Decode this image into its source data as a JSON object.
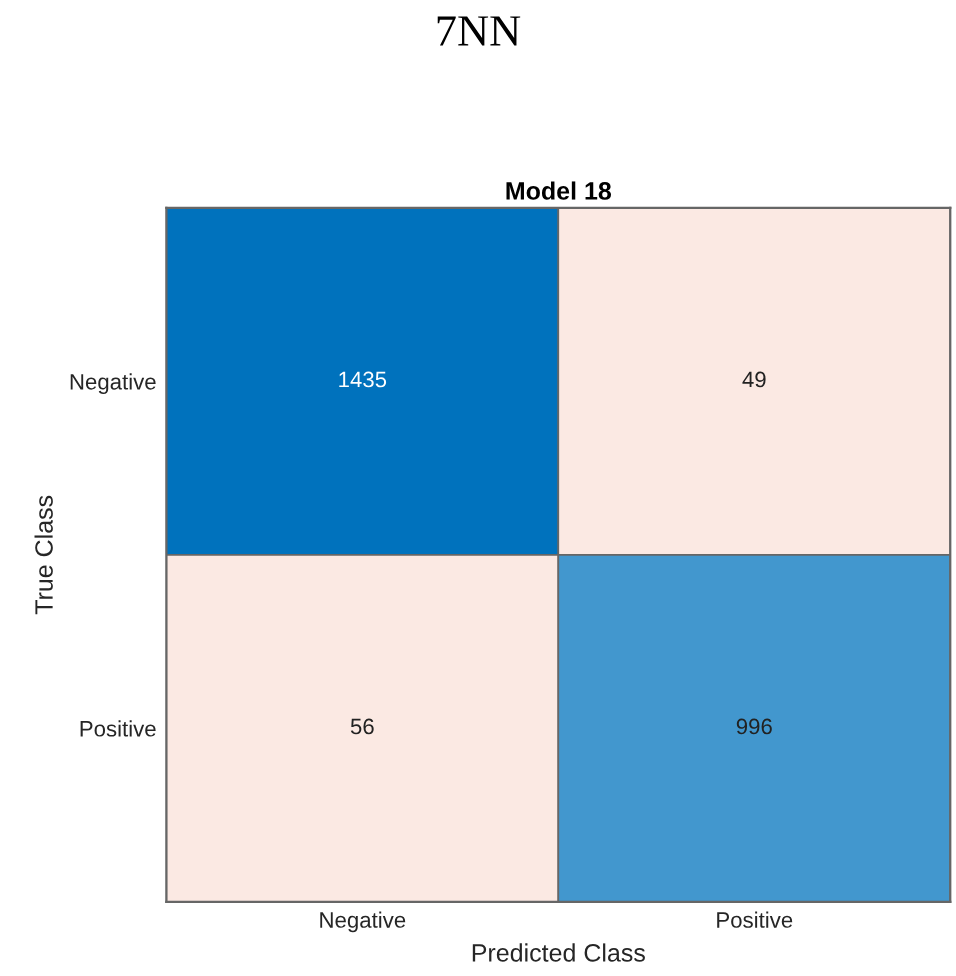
{
  "chart_data": {
    "type": "heatmap",
    "title": "7NN",
    "subtitle": "Model 18",
    "xlabel": "Predicted Class",
    "ylabel": "True Class",
    "categories": [
      "Negative",
      "Positive"
    ],
    "y_categories": [
      "Negative",
      "Positive"
    ],
    "data_labels": true,
    "cells": [
      [
        1435,
        49
      ],
      [
        56,
        996
      ]
    ]
  }
}
